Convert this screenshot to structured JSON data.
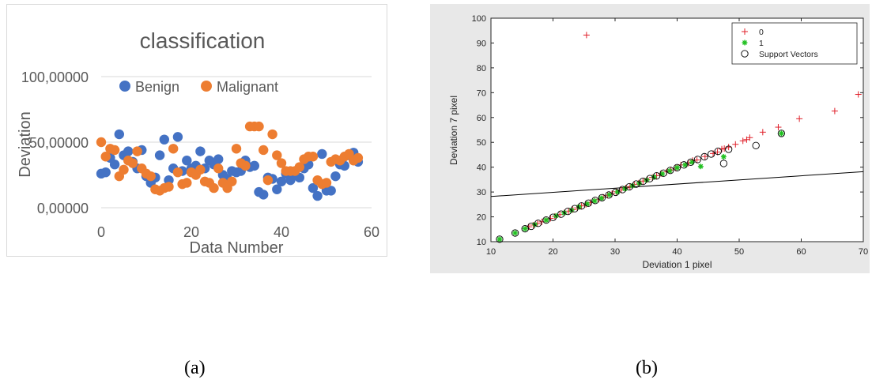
{
  "captions": {
    "a": "(a)",
    "b": "(b)"
  },
  "chart_data": [
    {
      "type": "scatter",
      "title": "classification",
      "xlabel": "Data Number",
      "ylabel": "Deviation",
      "xlim": [
        0,
        60
      ],
      "ylim": [
        0,
        100
      ],
      "xticks": [
        "0",
        "20",
        "40",
        "60"
      ],
      "yticks": [
        {
          "value": 0,
          "label": "0,00000"
        },
        {
          "value": 50,
          "label": "50,00000"
        },
        {
          "value": 100,
          "label": "100,00000"
        }
      ],
      "grid": true,
      "legend": "top",
      "series": [
        {
          "name": "Benign",
          "color": "#4472c4",
          "x": [
            0,
            1,
            2,
            3,
            4,
            5,
            6,
            7,
            8,
            9,
            10,
            11,
            12,
            13,
            14,
            15,
            16,
            17,
            18,
            19,
            20,
            21,
            22,
            23,
            24,
            25,
            26,
            27,
            28,
            29,
            30,
            31,
            32,
            33,
            34,
            35,
            36,
            37,
            38,
            39,
            40,
            41,
            42,
            43,
            44,
            45,
            46,
            47,
            48,
            49,
            50,
            51,
            52,
            53,
            54,
            55,
            56,
            57
          ],
          "y": [
            26,
            27,
            38,
            33,
            56,
            40,
            43,
            35,
            30,
            44,
            24,
            19,
            23,
            40,
            52,
            21,
            30,
            54,
            28,
            36,
            30,
            32,
            43,
            30,
            36,
            33,
            37,
            25,
            22,
            28,
            27,
            28,
            36,
            31,
            32,
            12,
            10,
            23,
            22,
            14,
            20,
            26,
            21,
            25,
            23,
            30,
            33,
            15,
            9,
            41,
            13,
            13,
            24,
            33,
            32,
            40,
            42,
            35
          ]
        },
        {
          "name": "Malignant",
          "color": "#ed7d31",
          "x": [
            0,
            1,
            2,
            3,
            4,
            5,
            6,
            7,
            8,
            9,
            10,
            11,
            12,
            13,
            14,
            15,
            16,
            17,
            18,
            19,
            20,
            21,
            22,
            23,
            24,
            25,
            26,
            27,
            28,
            29,
            30,
            31,
            32,
            33,
            34,
            35,
            36,
            37,
            38,
            39,
            40,
            41,
            42,
            43,
            44,
            45,
            46,
            47,
            48,
            49,
            50,
            51,
            52,
            53,
            54,
            55,
            56,
            57
          ],
          "y": [
            50,
            39,
            45,
            44,
            24,
            29,
            36,
            34,
            43,
            30,
            26,
            24,
            14,
            13,
            15,
            16,
            45,
            27,
            18,
            19,
            27,
            25,
            29,
            20,
            19,
            15,
            30,
            19,
            15,
            20,
            45,
            34,
            32,
            62,
            62,
            62,
            44,
            21,
            56,
            40,
            34,
            28,
            28,
            28,
            31,
            37,
            39,
            39,
            21,
            18,
            19,
            35,
            37,
            36,
            39,
            41,
            36,
            38
          ]
        }
      ]
    },
    {
      "type": "scatter",
      "title": "",
      "xlabel": "Deviation 1 pixel",
      "ylabel": "Deviation 7 pixel",
      "xlim": [
        10,
        70
      ],
      "ylim": [
        10,
        100
      ],
      "xticks": [
        10,
        20,
        30,
        40,
        50,
        60,
        70
      ],
      "yticks": [
        10,
        20,
        30,
        40,
        50,
        60,
        70,
        80,
        90,
        100
      ],
      "grid": false,
      "legend": "top-right",
      "series": [
        {
          "name": "0",
          "color": "#e0202a",
          "marker": "plus",
          "x": [
            25.4,
            69.2,
            65.4,
            59.7,
            56.3,
            53.8,
            51.7,
            51.2,
            50.6,
            49.4,
            48.3,
            47.6,
            47.2,
            46.5,
            45.8,
            44.5,
            43.2,
            42.5,
            41.8,
            40.6,
            39.8,
            39.0,
            38.3,
            37.4,
            36.7,
            36.0,
            35.2,
            34.5,
            33.8,
            33.1,
            32.4,
            31.7,
            31.0,
            30.2,
            29.5,
            28.8,
            28.1,
            27.4,
            26.7,
            26.0,
            25.3,
            24.6,
            23.9,
            23.2,
            22.5,
            21.8,
            21.1,
            20.3,
            19.6,
            18.9,
            18.2,
            17.5,
            16.8,
            16.1
          ],
          "y": [
            93.2,
            69.3,
            62.6,
            59.5,
            56.1,
            54.1,
            51.9,
            51.1,
            50.6,
            49.2,
            48.1,
            47.5,
            47.3,
            46.1,
            45.5,
            44.3,
            42.9,
            42.7,
            41.6,
            40.9,
            39.6,
            38.9,
            38.1,
            37.4,
            36.6,
            35.9,
            35.1,
            34.4,
            33.6,
            33.0,
            32.2,
            31.6,
            30.8,
            30.1,
            29.3,
            28.7,
            27.9,
            27.1,
            26.4,
            25.8,
            25.0,
            24.4,
            23.6,
            22.9,
            22.3,
            21.6,
            20.9,
            20.2,
            19.4,
            18.8,
            18.0,
            17.3,
            16.7,
            16.0
          ]
        },
        {
          "name": "1",
          "color": "#20c020",
          "marker": "asterisk",
          "x": [
            11.4,
            13.9,
            15.5,
            17.1,
            18.9,
            20.5,
            21.8,
            23.0,
            24.2,
            25.5,
            26.7,
            27.8,
            29.1,
            30.4,
            31.6,
            32.8,
            33.9,
            35.1,
            36.3,
            37.6,
            38.8,
            40.0,
            41.3,
            42.4,
            43.8,
            47.5,
            56.8
          ],
          "y": [
            11.0,
            13.5,
            15.2,
            16.9,
            18.7,
            20.4,
            21.6,
            22.7,
            24.0,
            25.2,
            26.4,
            27.5,
            28.9,
            30.0,
            31.3,
            32.5,
            33.5,
            34.8,
            36.0,
            37.3,
            38.5,
            39.8,
            40.9,
            42.0,
            40.3,
            44.2,
            53.6
          ]
        },
        {
          "name": "Support Vectors",
          "color": "#000000",
          "marker": "circle",
          "x": [
            11.4,
            13.9,
            15.5,
            16.5,
            17.6,
            18.9,
            20.0,
            21.3,
            22.4,
            23.5,
            24.6,
            25.7,
            26.8,
            27.9,
            29.0,
            30.1,
            31.2,
            32.3,
            33.4,
            34.5,
            35.6,
            36.7,
            37.8,
            38.9,
            40.0,
            41.1,
            42.2,
            43.3,
            44.4,
            45.5,
            46.6,
            47.5,
            48.3,
            52.7,
            56.8
          ],
          "y": [
            11.0,
            13.5,
            15.2,
            16.2,
            17.4,
            18.7,
            19.8,
            21.1,
            22.2,
            23.3,
            24.4,
            25.5,
            26.6,
            27.7,
            28.8,
            29.9,
            31.0,
            32.1,
            33.2,
            34.3,
            35.4,
            36.5,
            37.6,
            38.7,
            39.8,
            40.9,
            42.0,
            43.1,
            44.2,
            45.3,
            46.4,
            41.5,
            47.2,
            48.7,
            53.6
          ]
        }
      ],
      "decision_boundary": {
        "x": [
          10,
          70
        ],
        "y": [
          28.2,
          38.2
        ]
      }
    }
  ]
}
